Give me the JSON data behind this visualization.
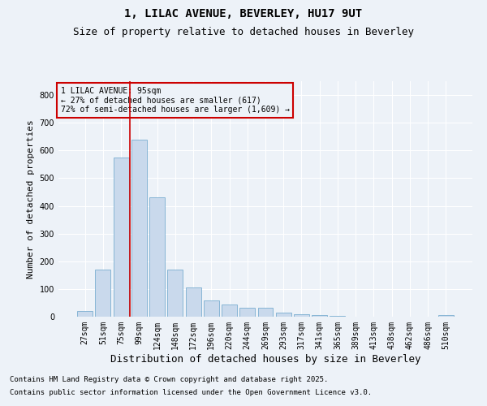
{
  "title1": "1, LILAC AVENUE, BEVERLEY, HU17 9UT",
  "title2": "Size of property relative to detached houses in Beverley",
  "xlabel": "Distribution of detached houses by size in Beverley",
  "ylabel": "Number of detached properties",
  "categories": [
    "27sqm",
    "51sqm",
    "75sqm",
    "99sqm",
    "124sqm",
    "148sqm",
    "172sqm",
    "196sqm",
    "220sqm",
    "244sqm",
    "269sqm",
    "293sqm",
    "317sqm",
    "341sqm",
    "365sqm",
    "389sqm",
    "413sqm",
    "438sqm",
    "462sqm",
    "486sqm",
    "510sqm"
  ],
  "values": [
    20,
    170,
    575,
    640,
    430,
    170,
    105,
    58,
    45,
    33,
    33,
    14,
    8,
    5,
    2,
    1,
    1,
    0,
    0,
    0,
    5
  ],
  "bar_color": "#c9d9ec",
  "bar_edgecolor": "#7aaed0",
  "vline_color": "#cc0000",
  "vline_x_index": 2.5,
  "annotation_title": "1 LILAC AVENUE: 95sqm",
  "annotation_line1": "← 27% of detached houses are smaller (617)",
  "annotation_line2": "72% of semi-detached houses are larger (1,609) →",
  "annotation_box_edgecolor": "#cc0000",
  "ylim": [
    0,
    850
  ],
  "yticks": [
    0,
    100,
    200,
    300,
    400,
    500,
    600,
    700,
    800
  ],
  "background_color": "#edf2f8",
  "grid_color": "#ffffff",
  "footnote1": "Contains HM Land Registry data © Crown copyright and database right 2025.",
  "footnote2": "Contains public sector information licensed under the Open Government Licence v3.0.",
  "title1_fontsize": 10,
  "title2_fontsize": 9,
  "ylabel_fontsize": 8,
  "xlabel_fontsize": 9,
  "tick_fontsize": 7,
  "annotation_fontsize": 7,
  "footnote_fontsize": 6.5
}
